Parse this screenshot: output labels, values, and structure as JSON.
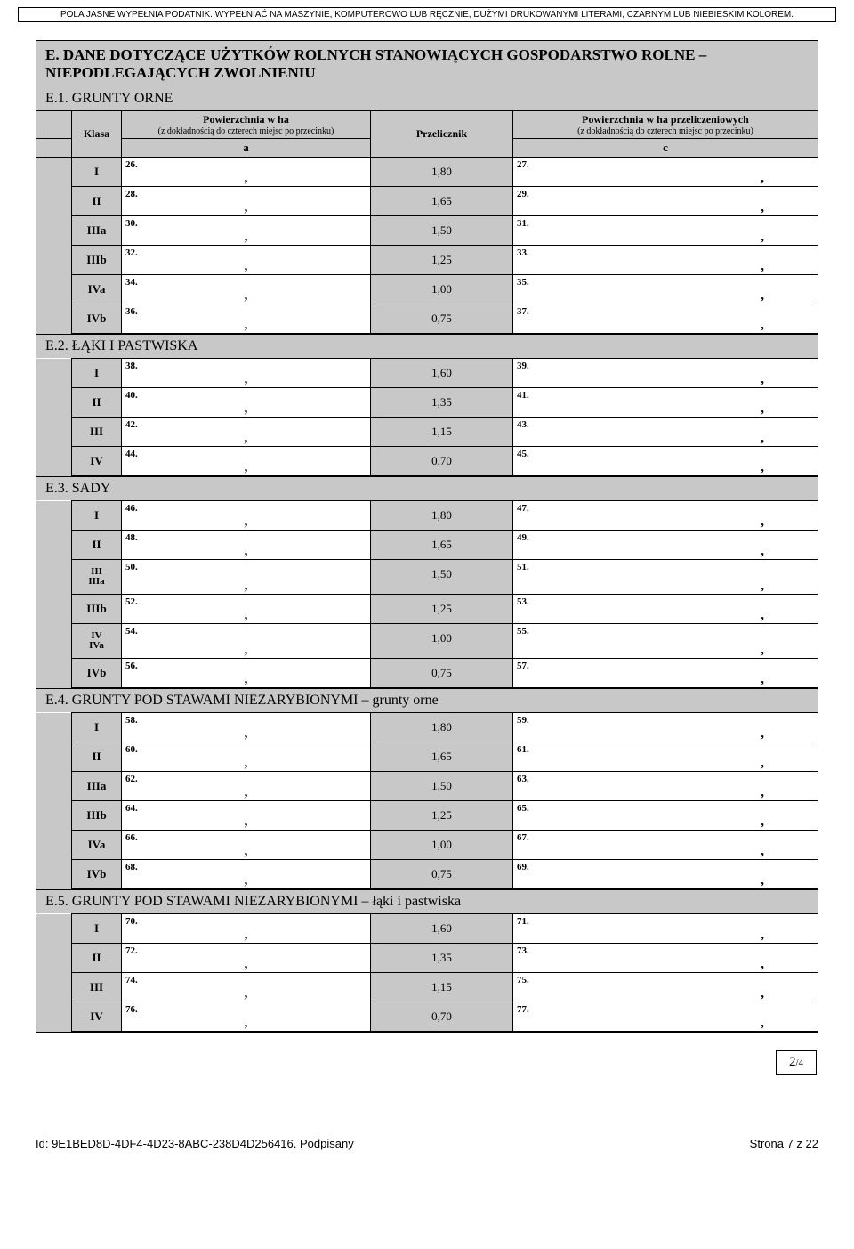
{
  "instructions": "POLA JASNE WYPEŁNIA PODATNIK. WYPEŁNIAĆ NA MASZYNIE, KOMPUTEROWO LUB RĘCZNIE, DUŻYMI DRUKOWANYMI LITERAMI, CZARNYM LUB NIEBIESKIM KOLOREM.",
  "section_e_title": "E. DANE DOTYCZĄCE UŻYTKÓW ROLNYCH STANOWIĄCYCH GOSPODARSTWO ROLNE – NIEPODLEGAJĄCYCH ZWOLNIENIU",
  "headers": {
    "klasa": "Klasa",
    "col_a_title": "Powierzchnia w ha",
    "col_a_sub": "(z dokładnością do czterech miejsc po przecinku)",
    "col_b_title": "Przelicznik",
    "col_c_title": "Powierzchnia w ha przeliczeniowych",
    "col_c_sub": "(z dokładnością do czterech miejsc po przecinku)",
    "a": "a",
    "b": "b",
    "c": "c"
  },
  "e1": {
    "title": "E.1. GRUNTY ORNE",
    "rows": [
      {
        "klasa": "I",
        "a_no": "26.",
        "b": "1,80",
        "c_no": "27."
      },
      {
        "klasa": "II",
        "a_no": "28.",
        "b": "1,65",
        "c_no": "29."
      },
      {
        "klasa": "IIIa",
        "a_no": "30.",
        "b": "1,50",
        "c_no": "31."
      },
      {
        "klasa": "IIIb",
        "a_no": "32.",
        "b": "1,25",
        "c_no": "33."
      },
      {
        "klasa": "IVa",
        "a_no": "34.",
        "b": "1,00",
        "c_no": "35."
      },
      {
        "klasa": "IVb",
        "a_no": "36.",
        "b": "0,75",
        "c_no": "37."
      }
    ]
  },
  "e2": {
    "title": "E.2. ŁĄKI I PASTWISKA",
    "rows": [
      {
        "klasa": "I",
        "a_no": "38.",
        "b": "1,60",
        "c_no": "39."
      },
      {
        "klasa": "II",
        "a_no": "40.",
        "b": "1,35",
        "c_no": "41."
      },
      {
        "klasa": "III",
        "a_no": "42.",
        "b": "1,15",
        "c_no": "43."
      },
      {
        "klasa": "IV",
        "a_no": "44.",
        "b": "0,70",
        "c_no": "45."
      }
    ]
  },
  "e3": {
    "title": "E.3. SADY",
    "rows": [
      {
        "klasa": "I",
        "a_no": "46.",
        "b": "1,80",
        "c_no": "47."
      },
      {
        "klasa": "II",
        "a_no": "48.",
        "b": "1,65",
        "c_no": "49."
      },
      {
        "klasa": "III\nIIIa",
        "a_no": "50.",
        "b": "1,50",
        "c_no": "51."
      },
      {
        "klasa": "IIIb",
        "a_no": "52.",
        "b": "1,25",
        "c_no": "53."
      },
      {
        "klasa": "IV\nIVa",
        "a_no": "54.",
        "b": "1,00",
        "c_no": "55."
      },
      {
        "klasa": "IVb",
        "a_no": "56.",
        "b": "0,75",
        "c_no": "57."
      }
    ]
  },
  "e4": {
    "title": "E.4. GRUNTY POD STAWAMI NIEZARYBIONYMI – grunty orne",
    "rows": [
      {
        "klasa": "I",
        "a_no": "58.",
        "b": "1,80",
        "c_no": "59."
      },
      {
        "klasa": "II",
        "a_no": "60.",
        "b": "1,65",
        "c_no": "61."
      },
      {
        "klasa": "IIIa",
        "a_no": "62.",
        "b": "1,50",
        "c_no": "63."
      },
      {
        "klasa": "IIIb",
        "a_no": "64.",
        "b": "1,25",
        "c_no": "65."
      },
      {
        "klasa": "IVa",
        "a_no": "66.",
        "b": "1,00",
        "c_no": "67."
      },
      {
        "klasa": "IVb",
        "a_no": "68.",
        "b": "0,75",
        "c_no": "69."
      }
    ]
  },
  "e5": {
    "title": "E.5. GRUNTY POD STAWAMI NIEZARYBIONYMI – łąki i pastwiska",
    "rows": [
      {
        "klasa": "I",
        "a_no": "70.",
        "b": "1,60",
        "c_no": "71."
      },
      {
        "klasa": "II",
        "a_no": "72.",
        "b": "1,35",
        "c_no": "73."
      },
      {
        "klasa": "III",
        "a_no": "74.",
        "b": "1,15",
        "c_no": "75."
      },
      {
        "klasa": "IV",
        "a_no": "76.",
        "b": "0,70",
        "c_no": "77."
      }
    ]
  },
  "page_counter": {
    "current": "2",
    "total": "/4"
  },
  "footer": {
    "left": "Id: 9E1BED8D-4DF4-4D23-8ABC-238D4D256416. Podpisany",
    "right": "Strona 7 z 22"
  }
}
